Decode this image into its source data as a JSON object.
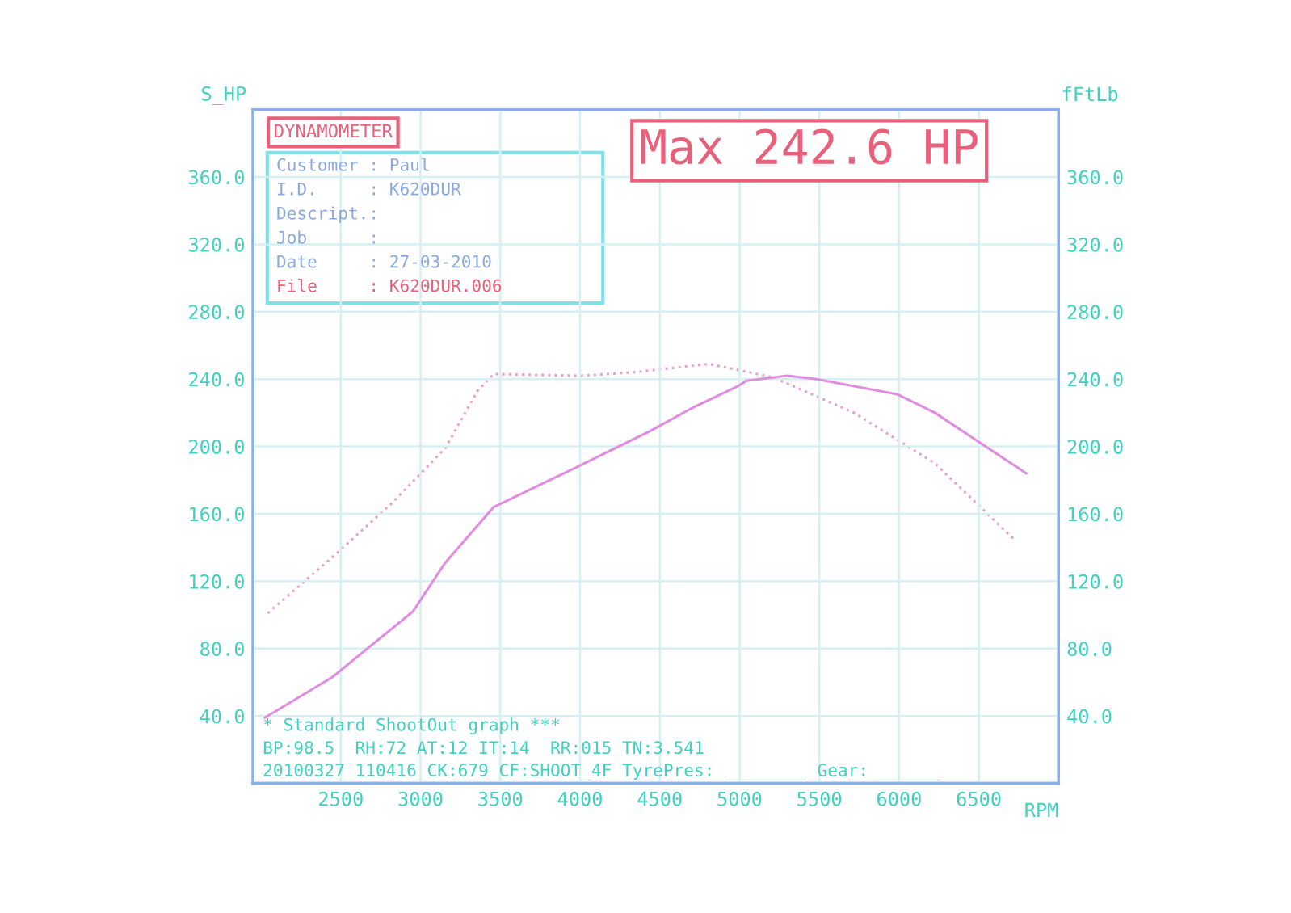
{
  "chart_data": {
    "type": "line",
    "title": "Max 242.6 HP",
    "xlabel": "RPM",
    "ylabel": "S_HP",
    "y2label": "fFtLb",
    "xlim": [
      1950,
      7000
    ],
    "xticks": [
      2500,
      3000,
      3500,
      4000,
      4500,
      5000,
      5500,
      6000,
      6500
    ],
    "ylim": [
      0,
      400
    ],
    "yticks": [
      {
        "value": 40,
        "label": "40.0"
      },
      {
        "value": 80,
        "label": "80.0"
      },
      {
        "value": 120,
        "label": "120.0"
      },
      {
        "value": 160,
        "label": "160.0"
      },
      {
        "value": 200,
        "label": "200.0"
      },
      {
        "value": 240,
        "label": "240.0"
      },
      {
        "value": 280,
        "label": "280.0"
      },
      {
        "value": 320,
        "label": "320.0"
      },
      {
        "value": 360,
        "label": "360.0"
      }
    ],
    "y2lim": [
      0,
      400
    ],
    "y2ticks": [
      {
        "value": 40,
        "label": "40.0"
      },
      {
        "value": 80,
        "label": "80.0"
      },
      {
        "value": 120,
        "label": "120.0"
      },
      {
        "value": 160,
        "label": "160.0"
      },
      {
        "value": 200,
        "label": "200.0"
      },
      {
        "value": 240,
        "label": "240.0"
      },
      {
        "value": 280,
        "label": "280.0"
      },
      {
        "value": 320,
        "label": "320.0"
      },
      {
        "value": 360,
        "label": "360.0"
      }
    ],
    "grid": true,
    "legend": false,
    "marker": "none",
    "series": [
      {
        "color": "#e08ce0",
        "line_style": "solid",
        "x": [
          2024,
          2446,
          2952,
          3155,
          3458,
          3964,
          4436,
          4706,
          4993,
          5043,
          5300,
          5482,
          5988,
          6224,
          6494,
          6798
        ],
        "values": [
          39,
          63,
          102,
          131,
          164,
          187,
          209,
          223,
          236,
          239,
          242,
          240,
          231,
          220,
          203,
          184
        ]
      },
      {
        "color": "#e8a0c8",
        "line_style": "dotted",
        "axis": "y2",
        "x": [
          2042,
          2480,
          2817,
          3155,
          3357,
          3458,
          3998,
          4335,
          4807,
          5212,
          5718,
          6224,
          6730
        ],
        "values": [
          101,
          137,
          166,
          199,
          233,
          243,
          242,
          244,
          249,
          241,
          220,
          190,
          144
        ]
      }
    ],
    "annotations": [
      "DYNAMOMETER",
      "Customer : Paul",
      "I.D.     : K620DUR",
      "Descript.:",
      "Job      :",
      "Date     : 27-03-2010",
      "File     : K620DUR.006",
      "* Standard ShootOut graph ***",
      "BP:98.5  RH:72 AT:12 IT:14  RR:015 TN:3.541",
      "20100327 110416 CK:679 CF:SHOOT_4F TyrePres: ________ Gear: ______"
    ]
  }
}
